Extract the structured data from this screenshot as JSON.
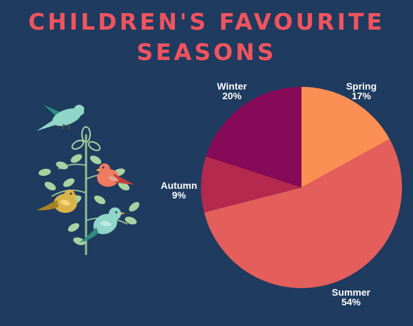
{
  "title_lines": [
    "CHILDREN'S FAVOURITE",
    "SEASONS"
  ],
  "chart_data": {
    "type": "pie",
    "title": "CHILDREN'S FAVOURITE SEASONS",
    "slices": [
      {
        "label": "Spring",
        "value": 17,
        "display": "17%",
        "color": "#fc8f53"
      },
      {
        "label": "Summer",
        "value": 54,
        "display": "54%",
        "color": "#e45e5b"
      },
      {
        "label": "Autumn",
        "value": 9,
        "display": "9%",
        "color": "#b5294f"
      },
      {
        "label": "Winter",
        "value": 20,
        "display": "20%",
        "color": "#870a58"
      }
    ],
    "start": "12 o'clock",
    "direction": "clockwise",
    "legend": "none"
  },
  "colors": {
    "background": "#1f3b5f",
    "title": "#f0545f",
    "labels": "#ffffff"
  },
  "illustration": {
    "icons": [
      "flying-bird-icon",
      "branch-icon",
      "red-bird-icon",
      "yellow-bird-icon",
      "teal-bird-icon"
    ]
  }
}
